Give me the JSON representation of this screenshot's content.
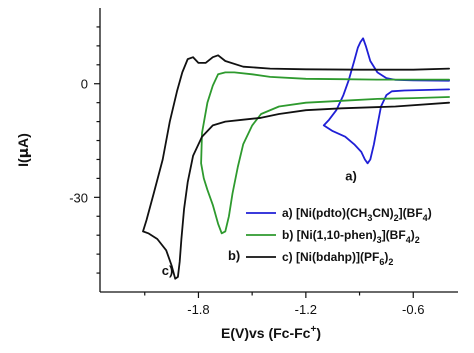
{
  "chart_data": {
    "type": "line",
    "xlabel": "E(V)vs (Fc-Fc",
    "xlabel_sup": "+",
    "xlabel_close": ")",
    "ylabel_prefix": "I(",
    "ylabel_mu": "μ",
    "ylabel_suffix": "A)",
    "xlim": [
      -2.35,
      -0.35
    ],
    "ylim": [
      -55,
      20
    ],
    "x_ticks": [
      -1.8,
      -1.2,
      -0.6
    ],
    "x_tick_labels": [
      "-1.8",
      "-1.2",
      "-0.6"
    ],
    "y_ticks": [
      0,
      -30
    ],
    "y_tick_labels": [
      "0",
      "-30"
    ],
    "grid": false,
    "legend_position": "right",
    "series": [
      {
        "id": "a",
        "color": "#1f1fd6",
        "legend_parts": [
          {
            "t": "a) [Ni(pdto)(CH"
          },
          {
            "t": "3",
            "sub": true
          },
          {
            "t": "CN)"
          },
          {
            "t": "2",
            "sub": true
          },
          {
            "t": "](BF"
          },
          {
            "t": "4",
            "sub": true
          },
          {
            "t": ")"
          }
        ],
        "points": [
          [
            -0.4,
            -1.5
          ],
          [
            -0.65,
            -1.8
          ],
          [
            -0.72,
            -2.0
          ],
          [
            -0.75,
            -3.0
          ],
          [
            -0.78,
            -6.0
          ],
          [
            -0.8,
            -11.0
          ],
          [
            -0.82,
            -16.0
          ],
          [
            -0.84,
            -20.0
          ],
          [
            -0.855,
            -21.0
          ],
          [
            -0.87,
            -20.0
          ],
          [
            -0.89,
            -18.0
          ],
          [
            -0.93,
            -16.0
          ],
          [
            -0.98,
            -14.0
          ],
          [
            -1.05,
            -12.5
          ],
          [
            -1.1,
            -11.0
          ],
          [
            -1.07,
            -9.5
          ],
          [
            -1.03,
            -7.0
          ],
          [
            -0.99,
            -3.0
          ],
          [
            -0.96,
            1.0
          ],
          [
            -0.93,
            6.0
          ],
          [
            -0.91,
            9.5
          ],
          [
            -0.895,
            11.0
          ],
          [
            -0.88,
            12.0
          ],
          [
            -0.865,
            10.0
          ],
          [
            -0.84,
            6.0
          ],
          [
            -0.8,
            3.0
          ],
          [
            -0.75,
            1.5
          ],
          [
            -0.7,
            1.0
          ],
          [
            -0.6,
            0.9
          ],
          [
            -0.4,
            0.8
          ]
        ]
      },
      {
        "id": "b",
        "color": "#2e9a2e",
        "legend_parts": [
          {
            "t": "b) [Ni(1,10-phen)"
          },
          {
            "t": "3",
            "sub": true
          },
          {
            "t": "](BF"
          },
          {
            "t": "4",
            "sub": true
          },
          {
            "t": ")"
          },
          {
            "t": "2",
            "sub": true
          }
        ],
        "points": [
          [
            -0.4,
            -3.5
          ],
          [
            -0.6,
            -3.8
          ],
          [
            -0.8,
            -4.0
          ],
          [
            -1.0,
            -4.5
          ],
          [
            -1.2,
            -5.0
          ],
          [
            -1.35,
            -6.0
          ],
          [
            -1.45,
            -8.0
          ],
          [
            -1.5,
            -11.0
          ],
          [
            -1.55,
            -16.0
          ],
          [
            -1.58,
            -22.0
          ],
          [
            -1.61,
            -29.0
          ],
          [
            -1.63,
            -35.0
          ],
          [
            -1.65,
            -39.0
          ],
          [
            -1.67,
            -39.5
          ],
          [
            -1.69,
            -37.0
          ],
          [
            -1.72,
            -32.0
          ],
          [
            -1.75,
            -28.0
          ],
          [
            -1.77,
            -25.0
          ],
          [
            -1.785,
            -21.0
          ],
          [
            -1.78,
            -13.0
          ],
          [
            -1.75,
            -5.0
          ],
          [
            -1.72,
            -0.5
          ],
          [
            -1.69,
            2.5
          ],
          [
            -1.65,
            3.0
          ],
          [
            -1.6,
            3.0
          ],
          [
            -1.5,
            2.5
          ],
          [
            -1.4,
            1.8
          ],
          [
            -1.2,
            1.3
          ],
          [
            -1.0,
            1.2
          ],
          [
            -0.8,
            1.1
          ],
          [
            -0.4,
            1.1
          ]
        ]
      },
      {
        "id": "c",
        "color": "#111111",
        "legend_parts": [
          {
            "t": "c) [Ni(bdahp)](PF"
          },
          {
            "t": "6",
            "sub": true
          },
          {
            "t": ")"
          },
          {
            "t": "2",
            "sub": true
          }
        ],
        "points": [
          [
            -0.4,
            -5.0
          ],
          [
            -0.7,
            -6.0
          ],
          [
            -1.0,
            -6.5
          ],
          [
            -1.2,
            -7.0
          ],
          [
            -1.35,
            -8.0
          ],
          [
            -1.45,
            -9.0
          ],
          [
            -1.55,
            -9.5
          ],
          [
            -1.65,
            -10.0
          ],
          [
            -1.72,
            -11.0
          ],
          [
            -1.78,
            -14.0
          ],
          [
            -1.83,
            -19.0
          ],
          [
            -1.86,
            -26.0
          ],
          [
            -1.88,
            -33.0
          ],
          [
            -1.895,
            -41.0
          ],
          [
            -1.905,
            -47.0
          ],
          [
            -1.915,
            -51.0
          ],
          [
            -1.93,
            -51.5
          ],
          [
            -1.95,
            -48.0
          ],
          [
            -1.98,
            -44.0
          ],
          [
            -2.03,
            -41.0
          ],
          [
            -2.08,
            -39.5
          ],
          [
            -2.11,
            -39.0
          ],
          [
            -2.09,
            -36.0
          ],
          [
            -2.05,
            -29.0
          ],
          [
            -2.0,
            -20.0
          ],
          [
            -1.96,
            -10.0
          ],
          [
            -1.92,
            -2.0
          ],
          [
            -1.89,
            3.0
          ],
          [
            -1.86,
            6.5
          ],
          [
            -1.83,
            7.0
          ],
          [
            -1.8,
            5.5
          ],
          [
            -1.76,
            5.5
          ],
          [
            -1.72,
            7.0
          ],
          [
            -1.69,
            7.5
          ],
          [
            -1.65,
            6.0
          ],
          [
            -1.55,
            4.5
          ],
          [
            -1.4,
            4.0
          ],
          [
            -1.2,
            3.8
          ],
          [
            -0.9,
            3.7
          ],
          [
            -0.6,
            3.7
          ],
          [
            -0.4,
            4.0
          ]
        ]
      }
    ],
    "annotations": [
      {
        "text": "a)",
        "x": -0.98,
        "y": -25.5
      },
      {
        "text": "b)",
        "x": -1.635,
        "y": -46.5
      },
      {
        "text": "c)",
        "x": -2.005,
        "y": -50.5
      }
    ]
  }
}
